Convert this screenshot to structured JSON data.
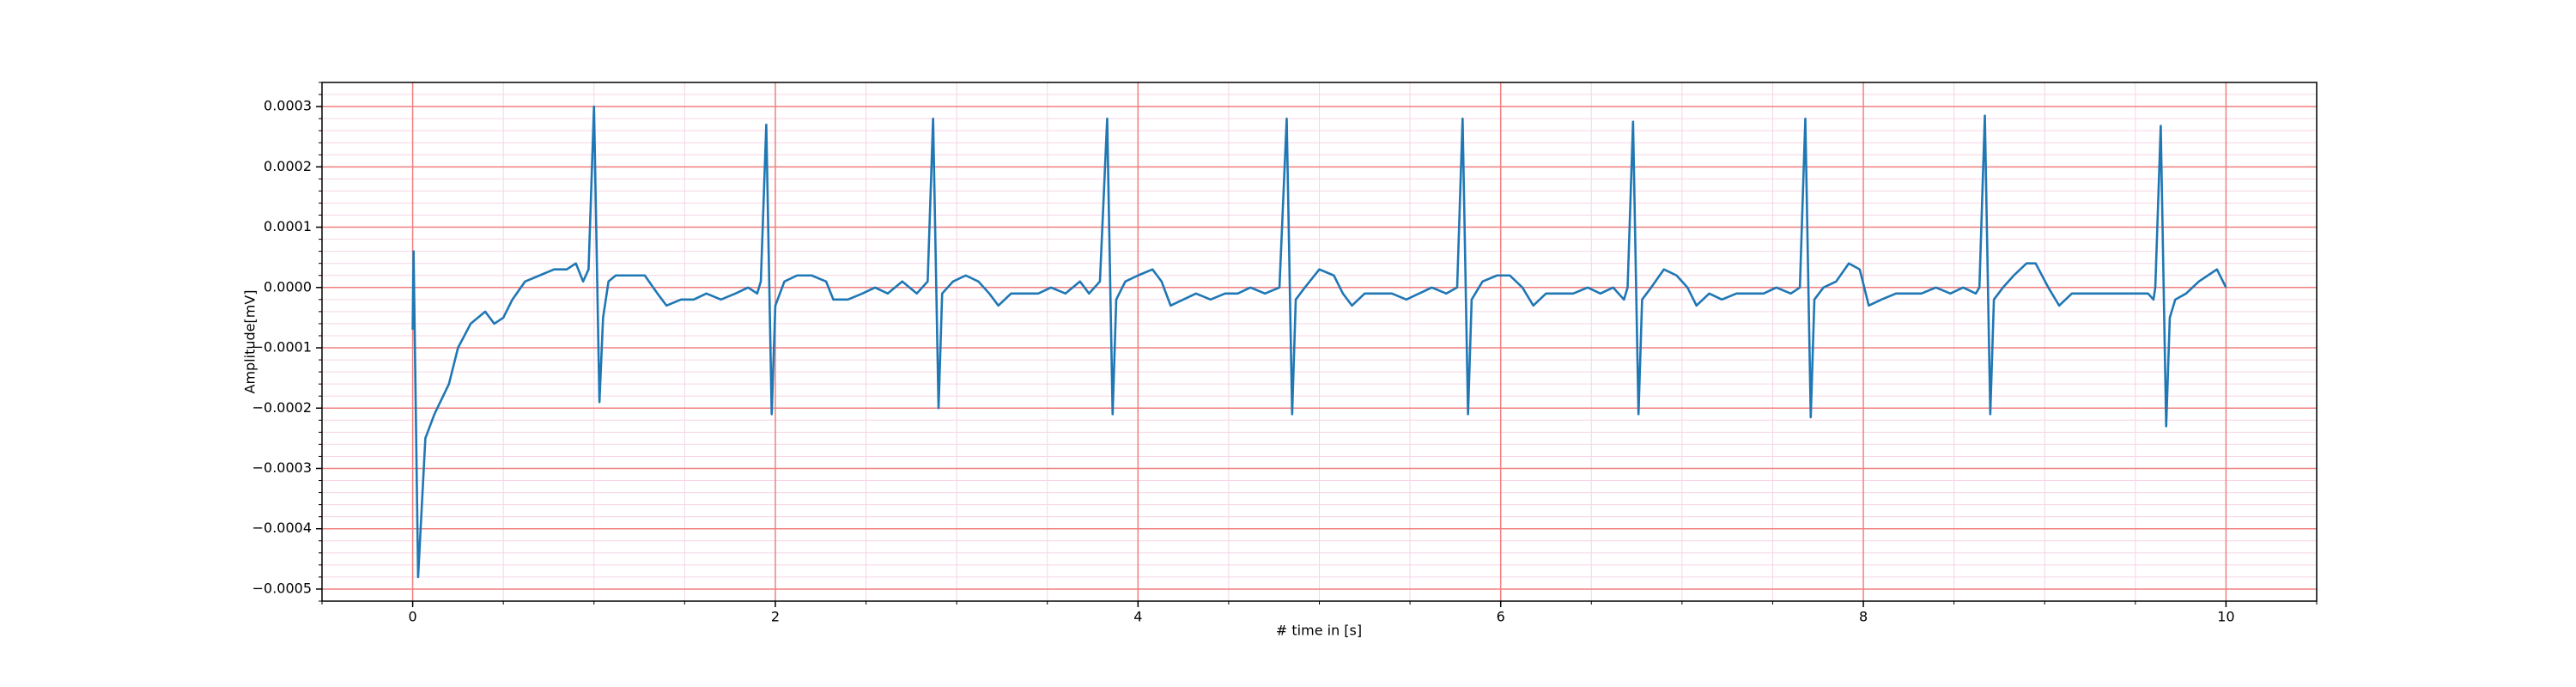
{
  "chart_data": {
    "type": "line",
    "xlabel": "# time in [s]",
    "ylabel": "Amplitude[mV]",
    "color": "#1f77b4",
    "grid": true,
    "grid_color": "#f08080",
    "minor_grid_color": "#f7d4e6",
    "xlim": [
      -0.5,
      10.5
    ],
    "ylim": [
      -0.00052,
      0.00034
    ],
    "xticks": [
      0,
      2,
      4,
      6,
      8,
      10
    ],
    "yticks": [
      {
        "value": -0.0005,
        "label": "−0.0005"
      },
      {
        "value": -0.0004,
        "label": "−0.0004"
      },
      {
        "value": -0.0003,
        "label": "−0.0003"
      },
      {
        "value": -0.0002,
        "label": "−0.0002"
      },
      {
        "value": -0.0001,
        "label": "−0.0001"
      },
      {
        "value": 0,
        "label": "0.0000"
      },
      {
        "value": 0.0001,
        "label": "0.0001"
      },
      {
        "value": 0.0002,
        "label": "0.0002"
      },
      {
        "value": 0.0003,
        "label": "0.0003"
      }
    ],
    "xminorticks": [
      -0.5,
      0,
      0.5,
      1,
      1.5,
      2,
      2.5,
      3,
      3.5,
      4,
      4.5,
      5,
      5.5,
      6,
      6.5,
      7,
      7.5,
      8,
      8.5,
      9,
      9.5,
      10,
      10.5
    ],
    "yminorticks": [
      -0.00052,
      -0.0005,
      -0.00048,
      -0.00046,
      -0.00044,
      -0.00042,
      -0.0004,
      -0.00038,
      -0.00036,
      -0.00034,
      -0.00032,
      -0.0003,
      -0.00028,
      -0.00026,
      -0.00024,
      -0.00022,
      -0.0002,
      -0.00018,
      -0.00016,
      -0.00014,
      -0.00012,
      -0.0001,
      -8e-05,
      -6e-05,
      -4e-05,
      -2e-05,
      0,
      2e-05,
      4e-05,
      6e-05,
      8e-05,
      0.0001,
      0.00012,
      0.00014,
      0.00016,
      0.00018,
      0.0002,
      0.00022,
      0.00024,
      0.00026,
      0.00028,
      0.0003,
      0.00032,
      0.00034
    ],
    "x": [
      0,
      0.005,
      0.03,
      0.07,
      0.12,
      0.2,
      0.25,
      0.32,
      0.4,
      0.45,
      0.5,
      0.55,
      0.62,
      0.7,
      0.78,
      0.85,
      0.9,
      0.94,
      0.97,
      1.0,
      1.03,
      1.05,
      1.08,
      1.12,
      1.2,
      1.28,
      1.35,
      1.4,
      1.48,
      1.55,
      1.62,
      1.7,
      1.78,
      1.85,
      1.9,
      1.92,
      1.95,
      1.98,
      2.0,
      2.05,
      2.12,
      2.2,
      2.28,
      2.32,
      2.4,
      2.48,
      2.55,
      2.62,
      2.7,
      2.78,
      2.84,
      2.87,
      2.9,
      2.92,
      2.98,
      3.05,
      3.12,
      3.18,
      3.23,
      3.3,
      3.38,
      3.45,
      3.52,
      3.6,
      3.68,
      3.73,
      3.79,
      3.83,
      3.86,
      3.88,
      3.93,
      4.0,
      4.08,
      4.13,
      4.18,
      4.25,
      4.32,
      4.4,
      4.48,
      4.55,
      4.62,
      4.7,
      4.78,
      4.82,
      4.85,
      4.87,
      4.92,
      5.0,
      5.08,
      5.13,
      5.18,
      5.25,
      5.32,
      5.4,
      5.48,
      5.55,
      5.62,
      5.7,
      5.76,
      5.79,
      5.82,
      5.84,
      5.9,
      5.98,
      6.05,
      6.12,
      6.18,
      6.25,
      6.32,
      6.4,
      6.48,
      6.55,
      6.62,
      6.68,
      6.7,
      6.73,
      6.76,
      6.78,
      6.83,
      6.9,
      6.97,
      7.03,
      7.08,
      7.15,
      7.22,
      7.3,
      7.38,
      7.45,
      7.52,
      7.6,
      7.65,
      7.68,
      7.71,
      7.73,
      7.78,
      7.85,
      7.92,
      7.98,
      8.03,
      8.1,
      8.18,
      8.25,
      8.32,
      8.4,
      8.48,
      8.55,
      8.62,
      8.64,
      8.67,
      8.7,
      8.72,
      8.77,
      8.83,
      8.9,
      8.95,
      9.02,
      9.08,
      9.15,
      9.22,
      9.3,
      9.38,
      9.45,
      9.52,
      9.57,
      9.6,
      9.61,
      9.64,
      9.67,
      9.69,
      9.72,
      9.78,
      9.85,
      9.9,
      9.95,
      10.0
    ],
    "values": [
      -7e-05,
      6e-05,
      -0.00048,
      -0.00025,
      -0.00021,
      -0.00016,
      -0.0001,
      -6e-05,
      -4e-05,
      -6e-05,
      -5e-05,
      -2e-05,
      1e-05,
      2e-05,
      3e-05,
      3e-05,
      4e-05,
      1e-05,
      3e-05,
      0.0003,
      -0.00019,
      -5e-05,
      1e-05,
      2e-05,
      2e-05,
      2e-05,
      -1e-05,
      -3e-05,
      -2e-05,
      -2e-05,
      -1e-05,
      -2e-05,
      -1e-05,
      0,
      -1e-05,
      1e-05,
      0.00027,
      -0.00021,
      -3e-05,
      1e-05,
      2e-05,
      2e-05,
      1e-05,
      -2e-05,
      -2e-05,
      -1e-05,
      0,
      -1e-05,
      1e-05,
      -1e-05,
      1e-05,
      0.00028,
      -0.0002,
      -1e-05,
      1e-05,
      2e-05,
      1e-05,
      -1e-05,
      -3e-05,
      -1e-05,
      -1e-05,
      -1e-05,
      0,
      -1e-05,
      1e-05,
      -1e-05,
      1e-05,
      0.00028,
      -0.00021,
      -2e-05,
      1e-05,
      2e-05,
      3e-05,
      1e-05,
      -3e-05,
      -2e-05,
      -1e-05,
      -2e-05,
      -1e-05,
      -1e-05,
      0,
      -1e-05,
      0,
      0.00028,
      -0.00021,
      -2e-05,
      0,
      3e-05,
      2e-05,
      -1e-05,
      -3e-05,
      -1e-05,
      -1e-05,
      -1e-05,
      -2e-05,
      -1e-05,
      0,
      -1e-05,
      0,
      0.00028,
      -0.00021,
      -2e-05,
      1e-05,
      2e-05,
      2e-05,
      0,
      -3e-05,
      -1e-05,
      -1e-05,
      -1e-05,
      0,
      -1e-05,
      0,
      -2e-05,
      0,
      0.000275,
      -0.00021,
      -2e-05,
      0,
      3e-05,
      2e-05,
      0,
      -3e-05,
      -1e-05,
      -2e-05,
      -1e-05,
      -1e-05,
      -1e-05,
      0,
      -1e-05,
      0,
      0.00028,
      -0.000215,
      -2e-05,
      0,
      1e-05,
      4e-05,
      3e-05,
      -3e-05,
      -2e-05,
      -1e-05,
      -1e-05,
      -1e-05,
      0,
      -1e-05,
      0,
      -1e-05,
      0,
      0.000285,
      -0.00021,
      -2e-05,
      0,
      2e-05,
      4e-05,
      4e-05,
      0,
      -3e-05,
      -1e-05,
      -1e-05,
      -1e-05,
      -1e-05,
      -1e-05,
      -1e-05,
      -1e-05,
      -2e-05,
      0,
      0.000268,
      -0.00023,
      -5e-05,
      -2e-05,
      -1e-05,
      1e-05,
      2e-05,
      3e-05,
      0
    ]
  }
}
